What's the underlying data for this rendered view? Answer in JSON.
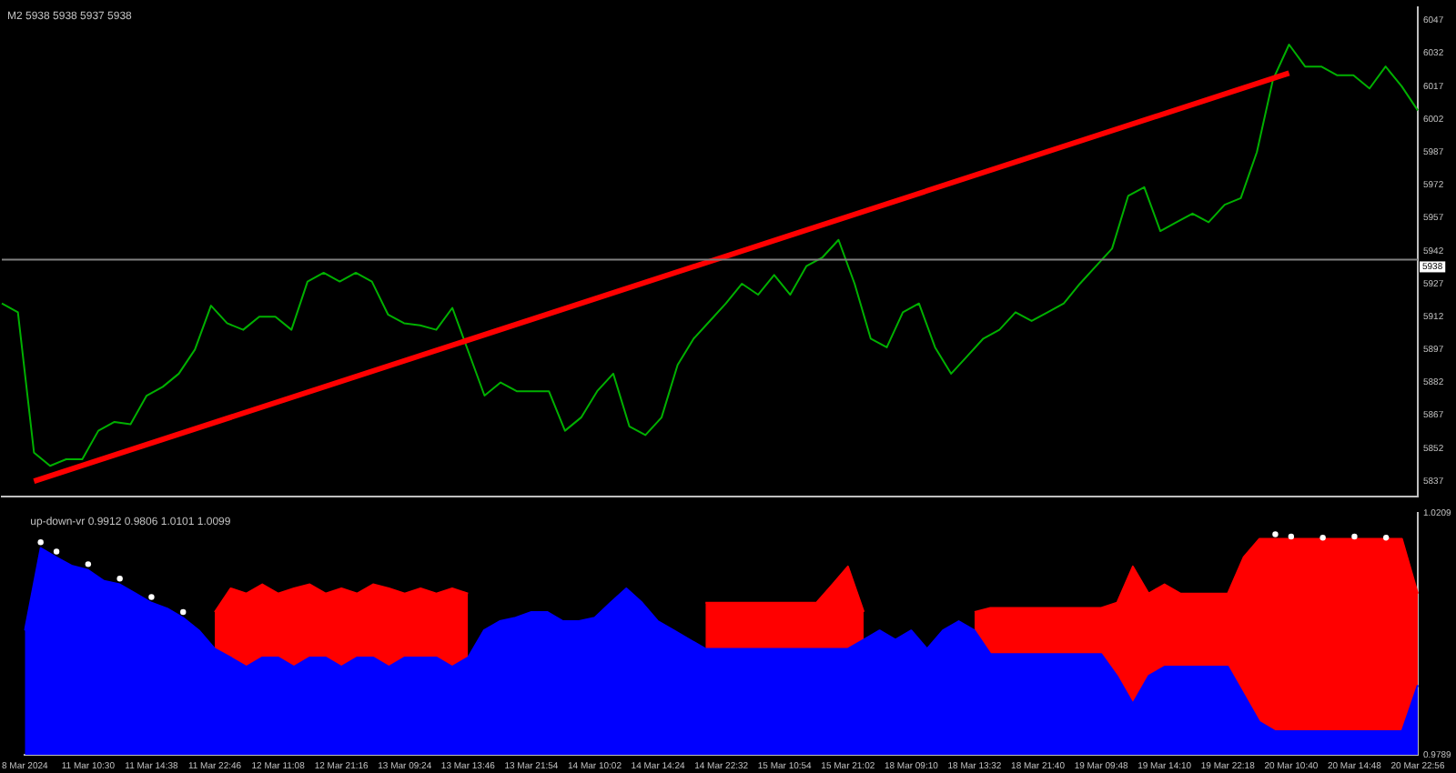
{
  "chart_data": [
    {
      "type": "line",
      "title": "M2 5938 5938 5937 5938",
      "categories": [
        null,
        null,
        null,
        null,
        null,
        null,
        null,
        null,
        null,
        null,
        null,
        null,
        null,
        null,
        null,
        null,
        null,
        null,
        null,
        null,
        null,
        null,
        null,
        null,
        null,
        null,
        null,
        null,
        null,
        null,
        null,
        null,
        null,
        null,
        null,
        null,
        null,
        null,
        null,
        null,
        null,
        null,
        null,
        null,
        null,
        null,
        null,
        null,
        null,
        null,
        null,
        null,
        null,
        null,
        null,
        null,
        null,
        null,
        null,
        null,
        null,
        null,
        null,
        null,
        null,
        null,
        null,
        null,
        null,
        null,
        null,
        null,
        null,
        null,
        null,
        null,
        null,
        null,
        null,
        null,
        null,
        null,
        null,
        null,
        null,
        null,
        null,
        null,
        null
      ],
      "series": [
        {
          "color": "#00b000",
          "values": [
            5918,
            5914,
            5850,
            5844,
            5847,
            5847,
            5860,
            5864,
            5863,
            5876,
            5880,
            5886,
            5897,
            5917,
            5909,
            5906,
            5912,
            5912,
            5906,
            5928,
            5932,
            5928,
            5932,
            5928,
            5913,
            5909,
            5908,
            5906,
            5916,
            5896,
            5876,
            5882,
            5878,
            5878,
            5878,
            5860,
            5866,
            5878,
            5886,
            5862,
            5858,
            5866,
            5890,
            5902,
            5910,
            5918,
            5927,
            5922,
            5931,
            5922,
            5935,
            5939,
            5947,
            5927,
            5902,
            5898,
            5914,
            5918,
            5898,
            5886,
            5894,
            5902,
            5906,
            5914,
            5910,
            5914,
            5918,
            5927,
            5935,
            5943,
            5967,
            5971,
            5951,
            5955,
            5959,
            5955,
            5963,
            5966,
            5987,
            6020,
            6036,
            6026,
            6026,
            6022,
            6022,
            6016,
            6026,
            6017,
            6006
          ]
        },
        {
          "type": "line",
          "color": "#ff0000",
          "values": [
            null,
            null,
            5837,
            null,
            null,
            null,
            null,
            null,
            null,
            null,
            null,
            null,
            null,
            null,
            null,
            null,
            null,
            null,
            null,
            null,
            null,
            null,
            null,
            null,
            null,
            null,
            null,
            null,
            null,
            null,
            null,
            null,
            null,
            null,
            null,
            null,
            null,
            null,
            null,
            null,
            null,
            null,
            null,
            null,
            null,
            null,
            null,
            null,
            null,
            null,
            null,
            null,
            null,
            null,
            null,
            null,
            null,
            null,
            null,
            null,
            null,
            null,
            null,
            null,
            null,
            null,
            null,
            null,
            null,
            null,
            null,
            null,
            null,
            null,
            null,
            null,
            null,
            null,
            null,
            null,
            6023,
            null,
            null,
            null,
            null,
            null,
            null,
            null,
            null
          ]
        }
      ],
      "ylim": [
        5830,
        6053
      ],
      "yticks": [
        5837,
        5852,
        5867,
        5882,
        5897,
        5912,
        5927,
        5942,
        5957,
        5972,
        5987,
        6002,
        6017,
        6032,
        6047
      ],
      "ref_lines": [
        {
          "axis": "y",
          "value": 5938,
          "label": "5938",
          "color": "#808080"
        }
      ],
      "tick_labels": "y",
      "grid": false,
      "legend": false,
      "marker": "none"
    },
    {
      "type": "area",
      "title": "up-down-vr 0.9912 0.9806 1.0101 1.0099",
      "categories": [
        "8 Mar 2024",
        null,
        null,
        null,
        "11 Mar 10:30",
        null,
        null,
        null,
        "11 Mar 14:38",
        null,
        null,
        null,
        "11 Mar 22:46",
        null,
        null,
        null,
        "12 Mar 11:08",
        null,
        null,
        null,
        "12 Mar 21:16",
        null,
        null,
        null,
        "13 Mar 09:24",
        null,
        null,
        null,
        "13 Mar 13:46",
        null,
        null,
        null,
        "13 Mar 21:54",
        null,
        null,
        null,
        "14 Mar 10:02",
        null,
        null,
        null,
        "14 Mar 14:24",
        null,
        null,
        null,
        "14 Mar 22:32",
        null,
        null,
        null,
        "15 Mar 10:54",
        null,
        null,
        null,
        "15 Mar 21:02",
        null,
        null,
        null,
        "18 Mar 09:10",
        null,
        null,
        null,
        "18 Mar 13:32",
        null,
        null,
        null,
        "18 Mar 21:40",
        null,
        null,
        null,
        "19 Mar 09:48",
        null,
        null,
        null,
        "19 Mar 14:10",
        null,
        null,
        null,
        "19 Mar 22:18",
        null,
        null,
        null,
        "20 Mar 10:40",
        null,
        null,
        null,
        "20 Mar 14:48",
        null,
        null,
        null,
        "20 Mar 22:56"
      ],
      "series": [
        {
          "color": "#ff0000",
          "values": [
            null,
            null,
            null,
            null,
            null,
            null,
            null,
            null,
            null,
            null,
            null,
            null,
            1.0037,
            1.0078,
            1.0069,
            1.0085,
            1.0069,
            1.0078,
            1.0085,
            1.0069,
            1.0078,
            1.0069,
            1.0085,
            1.0078,
            1.0069,
            1.0078,
            1.0069,
            1.0078,
            1.0069,
            null,
            null,
            null,
            null,
            null,
            null,
            null,
            null,
            null,
            null,
            null,
            null,
            null,
            null,
            1.0053,
            1.0053,
            1.0053,
            1.0053,
            1.0053,
            1.0053,
            1.0053,
            1.0053,
            1.0084,
            1.0116,
            1.0037,
            null,
            null,
            null,
            null,
            null,
            null,
            1.0037,
            1.0044,
            1.0044,
            1.0044,
            1.0044,
            1.0044,
            1.0044,
            1.0044,
            1.0044,
            1.0053,
            1.0116,
            1.0069,
            1.0085,
            1.0069,
            1.0069,
            1.0069,
            1.0069,
            1.0132,
            1.0164,
            1.0164,
            1.0164,
            1.0164,
            1.0164,
            1.0164,
            1.0164,
            1.0164,
            1.0164,
            1.0164,
            1.0069
          ]
        },
        {
          "color": "#0000ff",
          "values": [
            1.0005,
            1.0148,
            1.0132,
            1.0117,
            1.011,
            1.0091,
            1.0085,
            1.0069,
            1.0053,
            1.0043,
            1.0027,
            1.0005,
            0.9973,
            0.9958,
            0.9942,
            0.9958,
            0.9958,
            0.9942,
            0.9958,
            0.9958,
            0.9942,
            0.9958,
            0.9958,
            0.9942,
            0.9958,
            0.9958,
            0.9958,
            0.9942,
            0.9958,
            1.0005,
            1.0021,
            1.0027,
            1.0037,
            1.0037,
            1.0021,
            1.0021,
            1.0027,
            1.0053,
            1.0078,
            1.0053,
            1.0021,
            1.0005,
            0.9989,
            0.9973,
            0.9973,
            0.9973,
            0.9973,
            0.9973,
            0.9973,
            0.9973,
            0.9973,
            0.9973,
            0.9973,
            0.9989,
            1.0005,
            0.9989,
            1.0005,
            0.9973,
            1.0005,
            1.0021,
            1.0005,
            0.9964,
            0.9964,
            0.9964,
            0.9964,
            0.9964,
            0.9964,
            0.9964,
            0.9964,
            0.9926,
            0.9878,
            0.9926,
            0.9942,
            0.9942,
            0.9942,
            0.9942,
            0.9942,
            0.9894,
            0.9846,
            0.983,
            0.983,
            0.983,
            0.983,
            0.983,
            0.983,
            0.983,
            0.983,
            0.983,
            0.991
          ]
        },
        {
          "type": "scatter",
          "color": "#ffffff",
          "values": [
            null,
            1.0158,
            1.0142,
            null,
            1.012,
            null,
            1.0095,
            null,
            1.0063,
            null,
            1.0037,
            null,
            null,
            null,
            null,
            null,
            null,
            null,
            null,
            null,
            null,
            null,
            null,
            null,
            null,
            null,
            null,
            null,
            null,
            null,
            null,
            null,
            null,
            null,
            null,
            null,
            null,
            null,
            null,
            null,
            null,
            null,
            null,
            null,
            null,
            null,
            null,
            null,
            null,
            null,
            null,
            null,
            null,
            null,
            null,
            null,
            null,
            null,
            null,
            null,
            null,
            null,
            null,
            null,
            null,
            null,
            null,
            null,
            null,
            null,
            null,
            null,
            null,
            null,
            null,
            null,
            null,
            null,
            null,
            1.0172,
            1.0168,
            null,
            1.0166,
            null,
            1.0168,
            null,
            1.0166,
            null,
            null
          ]
        }
      ],
      "ylim": [
        0.9789,
        1.0209
      ],
      "yticks": [
        0.9789,
        1.0209
      ],
      "grid": false,
      "legend": false
    }
  ]
}
